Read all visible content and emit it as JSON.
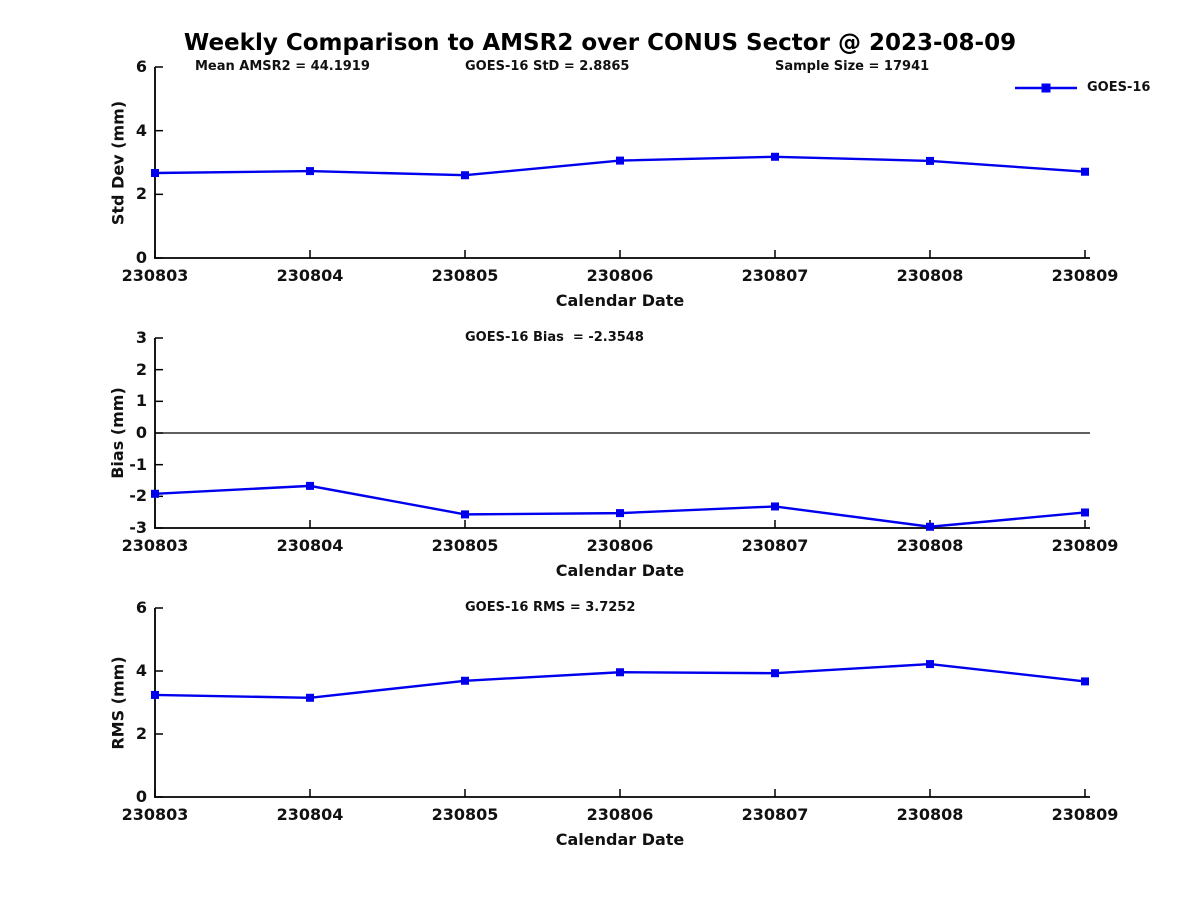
{
  "title": "Weekly Comparison to AMSR2 over CONUS Sector @ 2023-08-09",
  "legend": {
    "label": "GOES-16",
    "position": "top-right"
  },
  "colors": {
    "series": "#0000ee",
    "axis": "#000000",
    "text": "#111111",
    "background": "#ffffff"
  },
  "chart_data": [
    {
      "type": "line",
      "name": "std-dev-panel",
      "title": "",
      "annotations": [
        "Mean AMSR2 = 44.1919",
        "GOES-16 StD = 2.8865",
        "Sample Size = 17941"
      ],
      "categories": [
        "230803",
        "230804",
        "230805",
        "230806",
        "230807",
        "230808",
        "230809"
      ],
      "series": [
        {
          "name": "GOES-16",
          "values": [
            2.67,
            2.73,
            2.6,
            3.06,
            3.18,
            3.05,
            2.71
          ]
        }
      ],
      "xlabel": "Calendar Date",
      "ylabel": "Std Dev (mm)",
      "ylim": [
        0,
        6
      ],
      "yticks": [
        0,
        2,
        4,
        6
      ],
      "zero_line": false,
      "grid": false,
      "marker": "square",
      "legend_visible": true
    },
    {
      "type": "line",
      "name": "bias-panel",
      "title": "",
      "annotations": [
        "GOES-16 Bias  = -2.3548"
      ],
      "categories": [
        "230803",
        "230804",
        "230805",
        "230806",
        "230807",
        "230808",
        "230809"
      ],
      "series": [
        {
          "name": "GOES-16",
          "values": [
            -1.92,
            -1.67,
            -2.57,
            -2.53,
            -2.32,
            -2.96,
            -2.51
          ]
        }
      ],
      "xlabel": "Calendar Date",
      "ylabel": "Bias (mm)",
      "ylim": [
        -3,
        3
      ],
      "yticks": [
        -3,
        -2,
        -1,
        0,
        1,
        2,
        3
      ],
      "zero_line": true,
      "grid": false,
      "marker": "square",
      "legend_visible": false
    },
    {
      "type": "line",
      "name": "rms-panel",
      "title": "",
      "annotations": [
        "GOES-16 RMS = 3.7252"
      ],
      "categories": [
        "230803",
        "230804",
        "230805",
        "230806",
        "230807",
        "230808",
        "230809"
      ],
      "series": [
        {
          "name": "GOES-16",
          "values": [
            3.24,
            3.15,
            3.69,
            3.96,
            3.93,
            4.22,
            3.67
          ]
        }
      ],
      "xlabel": "Calendar Date",
      "ylabel": "RMS (mm)",
      "ylim": [
        0,
        6
      ],
      "yticks": [
        0,
        2,
        4,
        6
      ],
      "zero_line": false,
      "grid": false,
      "marker": "square",
      "legend_visible": false
    }
  ]
}
